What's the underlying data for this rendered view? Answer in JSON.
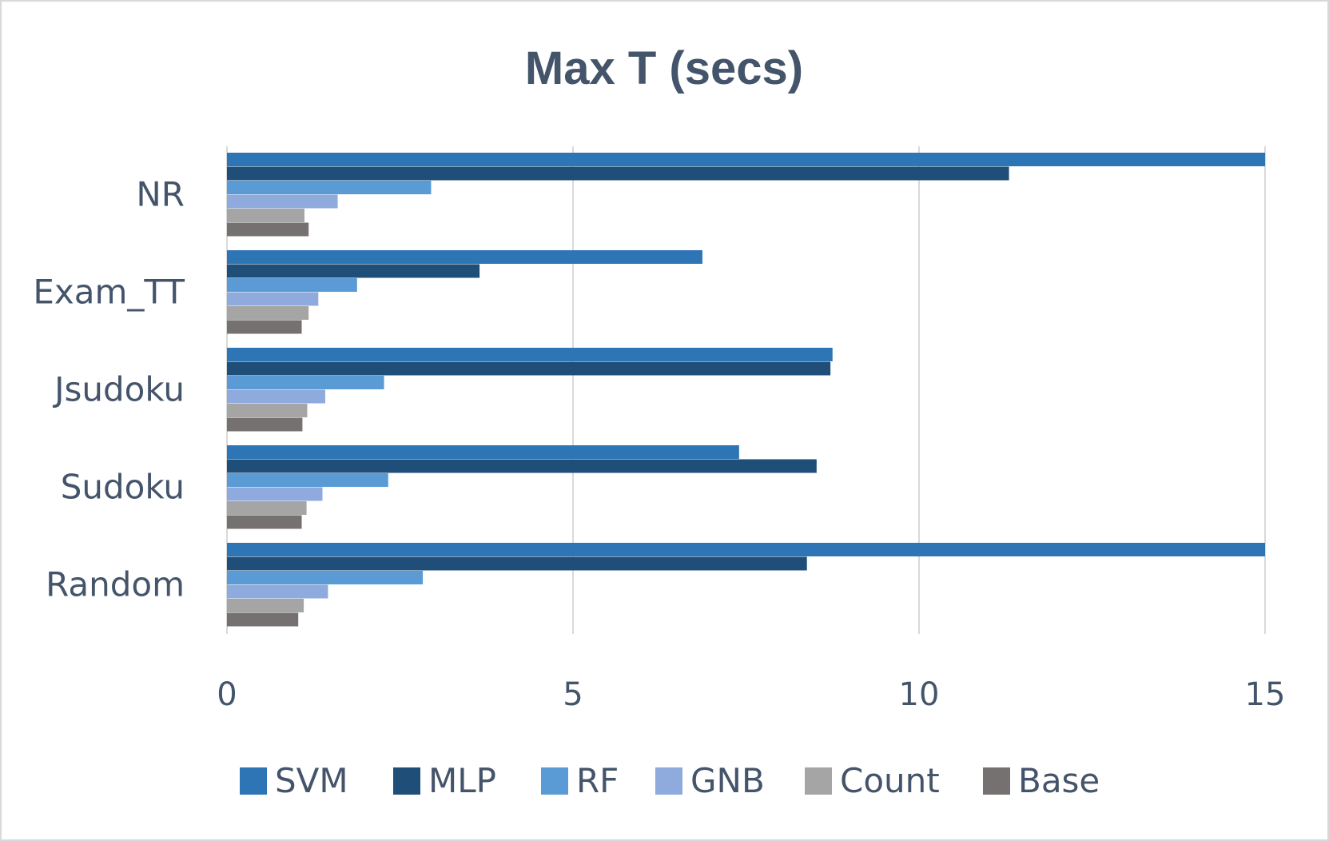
{
  "chart_data": {
    "type": "bar",
    "orientation": "horizontal",
    "title": "Max T (secs)",
    "categories": [
      "NR",
      "Exam_TT",
      "Jsudoku",
      "Sudoku",
      "Random"
    ],
    "series": [
      {
        "name": "SVM",
        "color": "#2e75b6",
        "values": [
          15.0,
          6.87,
          8.75,
          7.4,
          15.0
        ]
      },
      {
        "name": "MLP",
        "color": "#1f4e79",
        "values": [
          11.3,
          3.65,
          8.72,
          8.52,
          8.38
        ]
      },
      {
        "name": "RF",
        "color": "#5b9bd5",
        "values": [
          2.95,
          1.88,
          2.27,
          2.33,
          2.83
        ]
      },
      {
        "name": "GNB",
        "color": "#8faadc",
        "values": [
          1.6,
          1.32,
          1.42,
          1.38,
          1.46
        ]
      },
      {
        "name": "Count",
        "color": "#a5a5a5",
        "values": [
          1.12,
          1.18,
          1.16,
          1.15,
          1.11
        ]
      },
      {
        "name": "Base",
        "color": "#767171",
        "values": [
          1.18,
          1.08,
          1.09,
          1.08,
          1.03
        ]
      }
    ],
    "xlim": [
      0,
      15
    ],
    "xticks": [
      "0",
      "5",
      "10",
      "15"
    ],
    "grid": true,
    "legend": "bottom"
  }
}
